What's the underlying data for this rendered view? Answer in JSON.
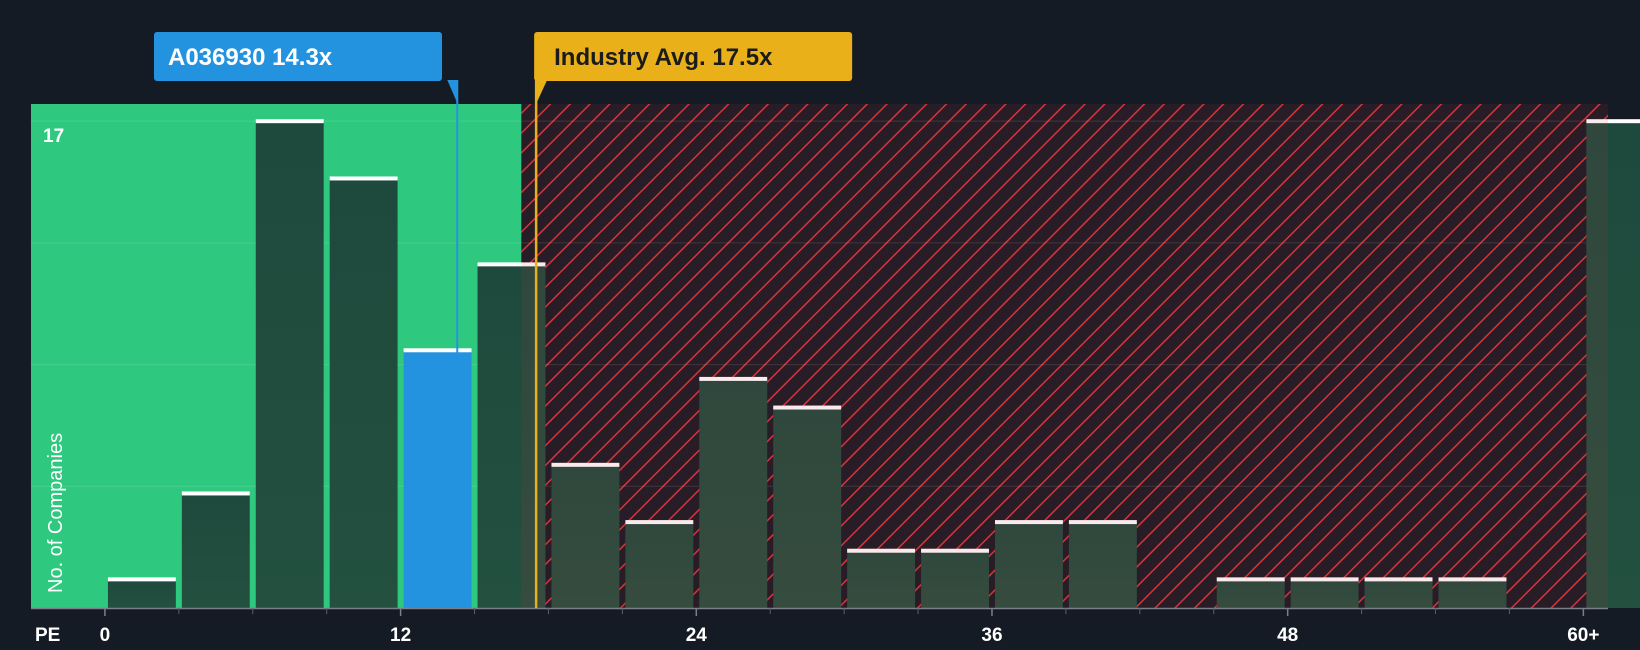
{
  "colors": {
    "background": "#151b24",
    "good_zone": "#2ec97f",
    "bad_hatch": "#d8343b",
    "bar_fill": "#1e4a3e",
    "highlight_bar": "#2393e0",
    "bar_top": "#ffffff",
    "callout_company": "#2393e0",
    "callout_industry": "#eab01a"
  },
  "chart_data": {
    "type": "bar",
    "title": "",
    "xlabel": "PE",
    "ylabel": "No. of Companies",
    "xlim": [
      -3,
      61
    ],
    "ylim": [
      0,
      17.6
    ],
    "y_max_label": "17",
    "x_ticks": [
      {
        "value": 0,
        "label": "0"
      },
      {
        "value": 12,
        "label": "12"
      },
      {
        "value": 24,
        "label": "24"
      },
      {
        "value": 36,
        "label": "36"
      },
      {
        "value": 48,
        "label": "48"
      },
      {
        "value": 60,
        "label": "60+"
      }
    ],
    "gridlines_y": [
      4.25,
      8.5,
      12.75,
      17
    ],
    "bin_width": 3,
    "bins": [
      {
        "start": 0,
        "count": 1
      },
      {
        "start": 3,
        "count": 4
      },
      {
        "start": 6,
        "count": 17
      },
      {
        "start": 9,
        "count": 15
      },
      {
        "start": 12,
        "count": 9,
        "highlight": true
      },
      {
        "start": 15,
        "count": 12
      },
      {
        "start": 18,
        "count": 5
      },
      {
        "start": 21,
        "count": 3
      },
      {
        "start": 24,
        "count": 8
      },
      {
        "start": 27,
        "count": 7
      },
      {
        "start": 30,
        "count": 2
      },
      {
        "start": 33,
        "count": 2
      },
      {
        "start": 36,
        "count": 3
      },
      {
        "start": 39,
        "count": 3
      },
      {
        "start": 42,
        "count": 0
      },
      {
        "start": 45,
        "count": 1
      },
      {
        "start": 48,
        "count": 1
      },
      {
        "start": 51,
        "count": 1
      },
      {
        "start": 54,
        "count": 1
      },
      {
        "start": 57,
        "count": 0
      },
      {
        "start": 60,
        "count": 17
      }
    ],
    "company": {
      "value": 14.3,
      "label": "A036930 14.3x"
    },
    "industry": {
      "value": 17.5,
      "label": "Industry Avg. 17.5x"
    },
    "good_zone_end": 16.9
  }
}
